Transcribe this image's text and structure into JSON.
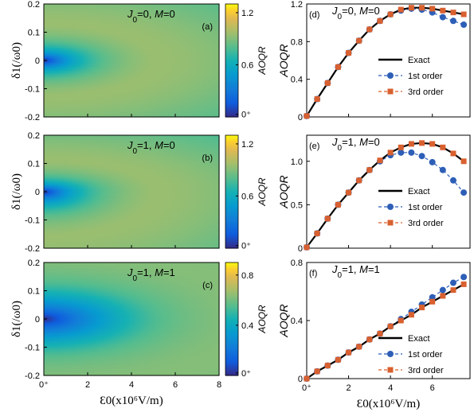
{
  "chart_data": [
    {
      "type": "heatmap",
      "panel_label": "(a)",
      "annotation": {
        "parts": [
          {
            "t": "J",
            "i": true
          },
          {
            "t": "0",
            "sub": true
          },
          {
            "t": "=0, "
          },
          {
            "t": "M",
            "i": true
          },
          {
            "t": "=0"
          }
        ]
      },
      "xlim": [
        0,
        8
      ],
      "ylim": [
        -0.2,
        0.2
      ],
      "ylabel": "δ1(/ω0)",
      "yticks": [
        "-0.2",
        "-0.1",
        "0",
        "0.1",
        "0.2"
      ],
      "colorbar": {
        "label": "AOQR",
        "range": [
          0,
          1.3
        ],
        "ticks": [
          {
            "v": 0.03,
            "label": "0⁺"
          },
          {
            "v": 0.6,
            "label": "0.6"
          },
          {
            "v": 1.2,
            "label": "1.2"
          }
        ]
      },
      "model": {
        "scale": 1.0,
        "k": 0.6,
        "dep": 0.0
      }
    },
    {
      "type": "heatmap",
      "panel_label": "(b)",
      "annotation": {
        "parts": [
          {
            "t": "J",
            "i": true
          },
          {
            "t": "0",
            "sub": true
          },
          {
            "t": "=1, "
          },
          {
            "t": "M",
            "i": true
          },
          {
            "t": "=0"
          }
        ]
      },
      "xlim": [
        0,
        8
      ],
      "ylim": [
        -0.2,
        0.2
      ],
      "ylabel": "δ1(/ω0)",
      "yticks": [
        "-0.2",
        "-0.1",
        "0",
        "0.1",
        "0.2"
      ],
      "colorbar": {
        "label": "AOQR",
        "range": [
          0,
          1.3
        ],
        "ticks": [
          {
            "v": 0.03,
            "label": "0⁺"
          },
          {
            "v": 0.6,
            "label": "0.6"
          },
          {
            "v": 1.2,
            "label": "1.2"
          }
        ]
      },
      "model": {
        "scale": 1.0,
        "k": 0.6,
        "dep": 0.35
      }
    },
    {
      "type": "heatmap",
      "panel_label": "(c)",
      "annotation": {
        "parts": [
          {
            "t": "J",
            "i": true
          },
          {
            "t": "0",
            "sub": true
          },
          {
            "t": "=1, "
          },
          {
            "t": "M",
            "i": true
          },
          {
            "t": "=1"
          }
        ]
      },
      "xlim": [
        0,
        8
      ],
      "ylim": [
        -0.2,
        0.2
      ],
      "ylabel": "δ1(/ω0)",
      "xlabel": "Ɛ0(x10⁶V/m)",
      "xticks": [
        {
          "v": 0,
          "label": "0⁺"
        },
        {
          "v": 2,
          "label": "2"
        },
        {
          "v": 4,
          "label": "4"
        },
        {
          "v": 6,
          "label": "6"
        },
        {
          "v": 8,
          "label": "8"
        }
      ],
      "yticks": [
        "-0.2",
        "-0.1",
        "0",
        "0.1",
        "0.2"
      ],
      "colorbar": {
        "label": "AOQR",
        "range": [
          0,
          0.9
        ],
        "ticks": [
          {
            "v": 0.02,
            "label": "0⁺"
          },
          {
            "v": 0.4,
            "label": "0.4"
          },
          {
            "v": 0.8,
            "label": "0.8"
          }
        ]
      },
      "model": {
        "scale": 0.85,
        "k": 0.2,
        "dep": 0.0
      }
    },
    {
      "type": "line",
      "panel_label": "(d)",
      "annotation": {
        "parts": [
          {
            "t": "J",
            "i": true
          },
          {
            "t": "0",
            "sub": true
          },
          {
            "t": "=0, "
          },
          {
            "t": "M",
            "i": true
          },
          {
            "t": "=0"
          }
        ]
      },
      "xlim": [
        0,
        7.8
      ],
      "ylim": [
        0,
        1.2
      ],
      "ylabel": "AOQR",
      "yticks": [
        {
          "v": 0,
          "label": "0"
        },
        {
          "v": 0.4,
          "label": "0.4"
        },
        {
          "v": 0.8,
          "label": "0.8"
        },
        {
          "v": 1.2,
          "label": "1.2"
        }
      ],
      "legend": [
        "Exact",
        "1st order",
        "3rd order"
      ],
      "x": [
        0,
        0.5,
        1,
        1.5,
        2,
        2.5,
        3,
        3.5,
        4,
        4.5,
        5,
        5.5,
        6,
        6.5,
        7,
        7.5
      ],
      "series": [
        {
          "name": "Exact",
          "values": [
            0.01,
            0.19,
            0.36,
            0.53,
            0.68,
            0.81,
            0.93,
            1.02,
            1.09,
            1.14,
            1.16,
            1.16,
            1.15,
            1.13,
            1.11,
            1.09
          ]
        },
        {
          "name": "1st order",
          "values": [
            0.01,
            0.19,
            0.36,
            0.53,
            0.68,
            0.81,
            0.93,
            1.02,
            1.09,
            1.13,
            1.15,
            1.14,
            1.11,
            1.06,
            1.02,
            0.98
          ]
        },
        {
          "name": "3rd order",
          "values": [
            0.01,
            0.19,
            0.36,
            0.53,
            0.68,
            0.81,
            0.93,
            1.02,
            1.09,
            1.14,
            1.16,
            1.16,
            1.15,
            1.13,
            1.11,
            1.09
          ]
        }
      ]
    },
    {
      "type": "line",
      "panel_label": "(e)",
      "annotation": {
        "parts": [
          {
            "t": "J",
            "i": true
          },
          {
            "t": "0",
            "sub": true
          },
          {
            "t": "=1, "
          },
          {
            "t": "M",
            "i": true
          },
          {
            "t": "=0"
          }
        ]
      },
      "xlim": [
        0,
        7.8
      ],
      "ylim": [
        0,
        1.3
      ],
      "ylabel": "AOQR",
      "yticks": [
        {
          "v": 0,
          "label": "0"
        },
        {
          "v": 0.5,
          "label": "0.5"
        },
        {
          "v": 1.0,
          "label": "1.0"
        }
      ],
      "legend": [
        "Exact",
        "1st order",
        "3rd order"
      ],
      "x": [
        0,
        0.5,
        1,
        1.5,
        2,
        2.5,
        3,
        3.5,
        4,
        4.5,
        5,
        5.5,
        6,
        6.5,
        7,
        7.5
      ],
      "series": [
        {
          "name": "Exact",
          "values": [
            0.01,
            0.17,
            0.34,
            0.5,
            0.64,
            0.78,
            0.9,
            1.01,
            1.1,
            1.16,
            1.2,
            1.21,
            1.2,
            1.16,
            1.09,
            1.0
          ]
        },
        {
          "name": "1st order",
          "values": [
            0.01,
            0.17,
            0.34,
            0.5,
            0.64,
            0.78,
            0.9,
            1.0,
            1.07,
            1.1,
            1.1,
            1.06,
            0.99,
            0.9,
            0.78,
            0.64
          ]
        },
        {
          "name": "3rd order",
          "values": [
            0.01,
            0.17,
            0.34,
            0.5,
            0.64,
            0.78,
            0.9,
            1.01,
            1.1,
            1.16,
            1.2,
            1.21,
            1.2,
            1.16,
            1.09,
            1.0
          ]
        }
      ]
    },
    {
      "type": "line",
      "panel_label": "(f)",
      "annotation": {
        "parts": [
          {
            "t": "J",
            "i": true
          },
          {
            "t": "0",
            "sub": true
          },
          {
            "t": "=1, "
          },
          {
            "t": "M",
            "i": true
          },
          {
            "t": "=1"
          }
        ]
      },
      "xlim": [
        0,
        7.8
      ],
      "ylim": [
        0,
        0.8
      ],
      "ylabel": "AOQR",
      "xlabel": "Ɛ0(x10⁶V/m)",
      "xticks": [
        {
          "v": 0,
          "label": "0⁺"
        },
        {
          "v": 2,
          "label": "2"
        },
        {
          "v": 4,
          "label": "4"
        },
        {
          "v": 6,
          "label": "6"
        }
      ],
      "yticks": [
        {
          "v": 0,
          "label": "0"
        },
        {
          "v": 0.4,
          "label": "0.4"
        },
        {
          "v": 0.8,
          "label": "0.8"
        }
      ],
      "legend": [
        "Exact",
        "1st order",
        "3rd order"
      ],
      "x": [
        0,
        0.5,
        1,
        1.5,
        2,
        2.5,
        3,
        3.5,
        4,
        4.5,
        5,
        5.5,
        6,
        6.5,
        7,
        7.5
      ],
      "series": [
        {
          "name": "Exact",
          "values": [
            0.0,
            0.05,
            0.09,
            0.13,
            0.18,
            0.22,
            0.27,
            0.31,
            0.36,
            0.4,
            0.44,
            0.49,
            0.53,
            0.57,
            0.61,
            0.65
          ]
        },
        {
          "name": "1st order",
          "values": [
            0.0,
            0.05,
            0.09,
            0.13,
            0.18,
            0.22,
            0.27,
            0.31,
            0.36,
            0.41,
            0.46,
            0.51,
            0.56,
            0.61,
            0.66,
            0.7
          ]
        },
        {
          "name": "3rd order",
          "values": [
            0.0,
            0.05,
            0.09,
            0.13,
            0.18,
            0.22,
            0.27,
            0.31,
            0.36,
            0.4,
            0.44,
            0.49,
            0.53,
            0.57,
            0.61,
            0.65
          ]
        }
      ]
    }
  ],
  "colors": {
    "exact": "#000000",
    "first": "#2e5fb7",
    "third": "#d9602f"
  }
}
